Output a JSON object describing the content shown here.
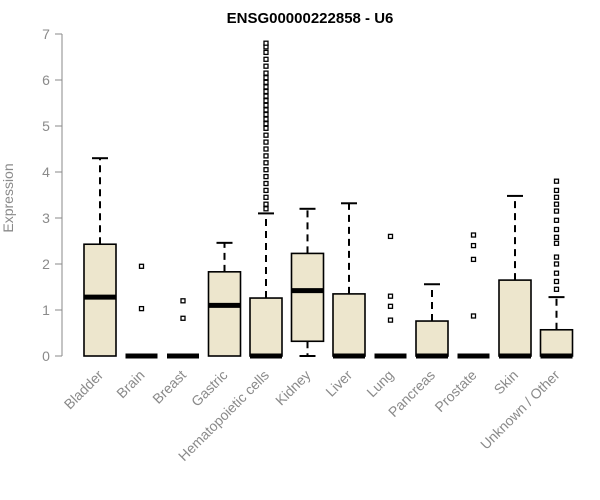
{
  "chart_data": {
    "type": "box",
    "title": "ENSG00000222858 - U6",
    "xlabel": "",
    "ylabel": "Expression",
    "ylim": [
      0,
      7
    ],
    "yticks": [
      0,
      1,
      2,
      3,
      4,
      5,
      6,
      7
    ],
    "box_fill": "#ede6cd",
    "categories": [
      "Bladder",
      "Brain",
      "Breast",
      "Gastric",
      "Hematopoietic cells",
      "Kidney",
      "Liver",
      "Lung",
      "Pancreas",
      "Prostate",
      "Skin",
      "Unknown / Other"
    ],
    "boxes": [
      {
        "category": "Bladder",
        "whisker_low": 0,
        "q1": 0,
        "median": 1.28,
        "q3": 2.43,
        "whisker_high": 4.3,
        "outliers": []
      },
      {
        "category": "Brain",
        "whisker_low": 0,
        "q1": 0,
        "median": 0,
        "q3": 0,
        "whisker_high": 0,
        "outliers": [
          1.95,
          1.03
        ]
      },
      {
        "category": "Breast",
        "whisker_low": 0,
        "q1": 0,
        "median": 0,
        "q3": 0,
        "whisker_high": 0,
        "outliers": [
          1.2,
          0.82
        ]
      },
      {
        "category": "Gastric",
        "whisker_low": 0,
        "q1": 0,
        "median": 1.1,
        "q3": 1.83,
        "whisker_high": 2.46,
        "outliers": []
      },
      {
        "category": "Hematopoietic cells",
        "whisker_low": 0,
        "q1": 0,
        "median": 0,
        "q3": 1.26,
        "whisker_high": 3.1,
        "outliers": [
          3.2,
          3.3,
          3.45,
          3.6,
          3.75,
          3.9,
          4.05,
          4.2,
          4.35,
          4.5,
          4.65,
          4.8,
          4.95,
          5.05,
          5.15,
          5.25,
          5.35,
          5.45,
          5.55,
          5.65,
          5.75,
          5.85,
          5.95,
          6.05,
          6.15,
          6.3,
          6.45,
          6.6,
          6.72,
          6.8
        ]
      },
      {
        "category": "Kidney",
        "whisker_low": 0,
        "q1": 0.32,
        "median": 1.42,
        "q3": 2.23,
        "whisker_high": 3.2,
        "outliers": []
      },
      {
        "category": "Liver",
        "whisker_low": 0,
        "q1": 0,
        "median": 0,
        "q3": 1.35,
        "whisker_high": 3.32,
        "outliers": []
      },
      {
        "category": "Lung",
        "whisker_low": 0,
        "q1": 0,
        "median": 0,
        "q3": 0,
        "whisker_high": 0,
        "outliers": [
          2.6,
          1.3,
          1.08,
          0.78
        ]
      },
      {
        "category": "Pancreas",
        "whisker_low": 0,
        "q1": 0,
        "median": 0,
        "q3": 0.76,
        "whisker_high": 1.56,
        "outliers": []
      },
      {
        "category": "Prostate",
        "whisker_low": 0,
        "q1": 0,
        "median": 0,
        "q3": 0,
        "whisker_high": 0,
        "outliers": [
          2.63,
          2.4,
          2.1,
          0.87
        ]
      },
      {
        "category": "Skin",
        "whisker_low": 0,
        "q1": 0,
        "median": 0,
        "q3": 1.65,
        "whisker_high": 3.48,
        "outliers": []
      },
      {
        "category": "Unknown / Other",
        "whisker_low": 0,
        "q1": 0,
        "median": 0,
        "q3": 0.57,
        "whisker_high": 1.28,
        "outliers": [
          1.45,
          1.62,
          1.8,
          2.0,
          2.15,
          2.45,
          2.58,
          2.75,
          2.95,
          3.15,
          3.3,
          3.45,
          3.6,
          3.8
        ]
      }
    ]
  }
}
